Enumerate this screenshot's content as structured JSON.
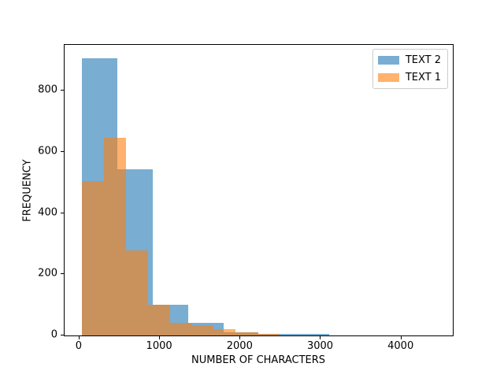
{
  "chart_data": {
    "type": "bar",
    "subtype": "overlaid-histogram",
    "title": "",
    "xlabel": "NUMBER OF CHARACTERS",
    "ylabel": "FREQUENCY",
    "xlim": [
      -185,
      4639
    ],
    "ylim": [
      0,
      950
    ],
    "xticks": [
      0,
      1000,
      2000,
      3000,
      4000
    ],
    "yticks": [
      0,
      200,
      400,
      600,
      800
    ],
    "grid": false,
    "background_color": "#ffffff",
    "spine_color": "#000000",
    "bar_alpha": 0.6,
    "legend": {
      "position": "upper right",
      "entries": [
        {
          "label": "TEXT 2",
          "color": "#1f77b4"
        },
        {
          "label": "TEXT 1",
          "color": "#ff7f0e"
        }
      ]
    },
    "series": [
      {
        "name": "TEXT 2",
        "color": "#1f77b4",
        "bin_start": 34,
        "bin_width": 438.5,
        "counts": [
          905,
          543,
          100,
          40,
          10,
          6,
          6,
          0,
          0,
          1
        ]
      },
      {
        "name": "TEXT 1",
        "color": "#ff7f0e",
        "bin_start": 34,
        "bin_width": 272,
        "counts": [
          505,
          647,
          279,
          100,
          40,
          33,
          21,
          11,
          6,
          1
        ]
      }
    ]
  }
}
